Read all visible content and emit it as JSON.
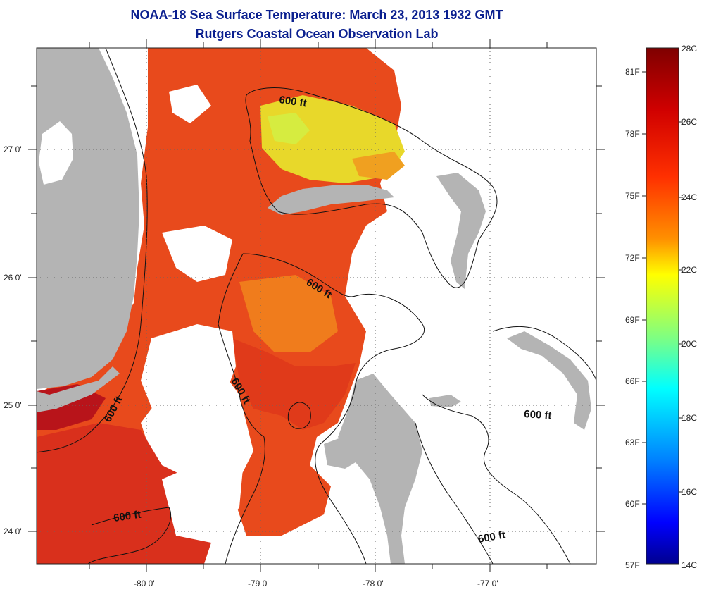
{
  "title": {
    "line1": "NOAA-18 Sea Surface Temperature:  March 23, 2013 1932 GMT",
    "line2": "Rutgers Coastal Ocean Observation Lab"
  },
  "map": {
    "lat_ticks": [
      "27 0'",
      "26 0'",
      "25 0'",
      "24 0'"
    ],
    "lon_ticks": [
      "-80 0'",
      "-79 0'",
      "-78 0'",
      "-77 0'"
    ],
    "contour_labels": [
      "600 ft",
      "600 ft",
      "600 ft",
      "600 ft",
      "600 ft",
      "600 ft"
    ],
    "colors": {
      "land": "#b4b4b4",
      "no_data": "#ffffff",
      "sst_warm": "#e8431a",
      "sst_hot": "#c8101a",
      "sst_mid": "#f07a1a",
      "sst_cool": "#e8e028"
    }
  },
  "colorbar": {
    "celsius": [
      "28C",
      "26C",
      "24C",
      "22C",
      "20C",
      "18C",
      "16C",
      "14C"
    ],
    "fahrenheit": [
      "81F",
      "78F",
      "75F",
      "72F",
      "69F",
      "66F",
      "63F",
      "60F",
      "57F"
    ],
    "colors": [
      "#7f0000",
      "#ff0000",
      "#ff8000",
      "#ffff00",
      "#80ff80",
      "#00ffff",
      "#0080ff",
      "#0000ff",
      "#00008f"
    ]
  }
}
